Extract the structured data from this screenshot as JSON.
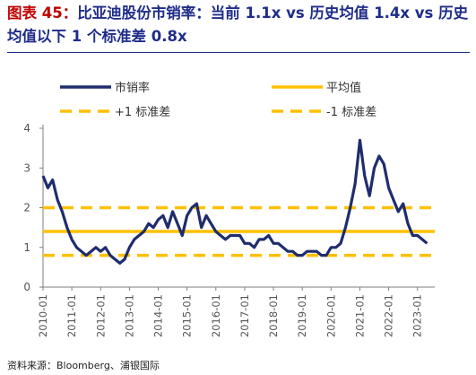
{
  "title": {
    "label": "图表 45：",
    "text": "比亚迪股份市销率：当前 1.1x vs 历史均值 1.4x vs 历史均值以下 1 个标准差 0.8x"
  },
  "source": "资料来源：Bloomberg、浦银国际",
  "colors": {
    "series": "#1f2d6e",
    "mean": "#ffc000",
    "band": "#ffc000",
    "axis": "#7f7f7f",
    "title": "#1f2d8a",
    "title_label": "#c00000"
  },
  "chart_data": {
    "type": "line",
    "legend": [
      "市销率",
      "平均值",
      "+1 标准差",
      "-1 标准差"
    ],
    "legend_position": "top",
    "ylim": [
      0,
      4
    ],
    "yticks": [
      "0",
      "1",
      "2",
      "3",
      "4"
    ],
    "xticks": [
      "2010-01",
      "2011-01",
      "2012-01",
      "2013-01",
      "2014-01",
      "2015-01",
      "2016-01",
      "2017-01",
      "2018-01",
      "2019-01",
      "2020-01",
      "2021-01",
      "2022-01",
      "2023-01"
    ],
    "grid": false,
    "series": [
      {
        "name": "市销率",
        "style": "solid",
        "x": [
          "2010-01",
          "2010-03",
          "2010-05",
          "2010-07",
          "2010-09",
          "2010-11",
          "2011-01",
          "2011-03",
          "2011-05",
          "2011-07",
          "2011-09",
          "2011-11",
          "2012-01",
          "2012-03",
          "2012-05",
          "2012-07",
          "2012-09",
          "2012-11",
          "2013-01",
          "2013-03",
          "2013-05",
          "2013-07",
          "2013-09",
          "2013-11",
          "2014-01",
          "2014-03",
          "2014-05",
          "2014-07",
          "2014-09",
          "2014-11",
          "2015-01",
          "2015-03",
          "2015-05",
          "2015-07",
          "2015-09",
          "2015-11",
          "2016-01",
          "2016-03",
          "2016-05",
          "2016-07",
          "2016-09",
          "2016-11",
          "2017-01",
          "2017-03",
          "2017-05",
          "2017-07",
          "2017-09",
          "2017-11",
          "2018-01",
          "2018-03",
          "2018-05",
          "2018-07",
          "2018-09",
          "2018-11",
          "2019-01",
          "2019-03",
          "2019-05",
          "2019-07",
          "2019-09",
          "2019-11",
          "2020-01",
          "2020-03",
          "2020-05",
          "2020-07",
          "2020-09",
          "2020-11",
          "2021-01",
          "2021-03",
          "2021-05",
          "2021-07",
          "2021-09",
          "2021-11",
          "2022-01",
          "2022-03",
          "2022-05",
          "2022-07",
          "2022-09",
          "2022-11",
          "2023-01",
          "2023-03",
          "2023-05"
        ],
        "values": [
          2.8,
          2.5,
          2.7,
          2.2,
          1.9,
          1.5,
          1.2,
          1.0,
          0.9,
          0.8,
          0.9,
          1.0,
          0.9,
          1.0,
          0.8,
          0.7,
          0.6,
          0.7,
          1.0,
          1.2,
          1.3,
          1.4,
          1.6,
          1.5,
          1.7,
          1.8,
          1.5,
          1.9,
          1.6,
          1.3,
          1.8,
          2.0,
          2.1,
          1.5,
          1.8,
          1.6,
          1.4,
          1.3,
          1.2,
          1.3,
          1.3,
          1.3,
          1.1,
          1.1,
          1.0,
          1.2,
          1.2,
          1.3,
          1.1,
          1.1,
          1.0,
          0.9,
          0.9,
          0.8,
          0.8,
          0.9,
          0.9,
          0.9,
          0.8,
          0.8,
          1.0,
          1.0,
          1.1,
          1.5,
          2.0,
          2.6,
          3.7,
          2.8,
          2.3,
          3.0,
          3.3,
          3.1,
          2.5,
          2.2,
          1.9,
          2.1,
          1.6,
          1.3,
          1.3,
          1.2,
          1.1
        ]
      },
      {
        "name": "平均值",
        "style": "solid",
        "values": [
          1.4
        ]
      },
      {
        "name": "+1 标准差",
        "style": "dashed",
        "values": [
          2.0
        ]
      },
      {
        "name": "-1 标准差",
        "style": "dashed",
        "values": [
          0.8
        ]
      }
    ]
  }
}
